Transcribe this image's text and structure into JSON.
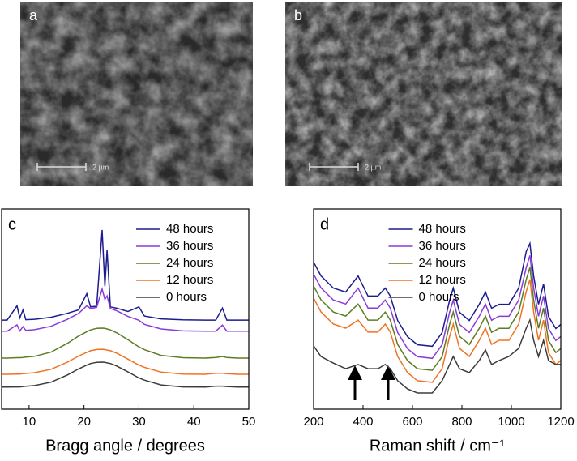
{
  "images": [
    {
      "label": "a",
      "scale_bar": "2 µm"
    },
    {
      "label": "b",
      "scale_bar": "2 µm"
    }
  ],
  "chart_data": [
    {
      "type": "line",
      "panel_label": "c",
      "x_label": "Bragg angle / degrees",
      "xlim": [
        5,
        50
      ],
      "xticks": [
        10,
        20,
        30,
        40,
        50
      ],
      "ylim": [
        0,
        100
      ],
      "legend": "upper right",
      "x": [
        5,
        6,
        7.8,
        8.3,
        8.9,
        9.4,
        11,
        14,
        17,
        19,
        20.5,
        21.2,
        22.3,
        23.3,
        23.8,
        24.2,
        24.8,
        26,
        28,
        30,
        31,
        34,
        38,
        42,
        44,
        45.2,
        46,
        48,
        50
      ],
      "series": [
        {
          "name": "48 hours",
          "color": "#1c1c8f",
          "values": [
            44.5,
            44.5,
            51.6,
            45.6,
            49.6,
            44.7,
            44.9,
            45.9,
            47.9,
            49.6,
            57.7,
            51.1,
            51.4,
            89.5,
            61.4,
            79.3,
            51.1,
            50.4,
            48.8,
            51.1,
            46.5,
            45.1,
            44.6,
            44.5,
            44.5,
            50.5,
            44.5,
            44.5,
            44.5
          ]
        },
        {
          "name": "36 hours",
          "color": "#8a3ad8",
          "values": [
            39,
            39,
            42.1,
            39.1,
            41.2,
            39.4,
            39.7,
            41.4,
            44.9,
            47.8,
            51.6,
            50.3,
            50.9,
            60,
            54.9,
            56.6,
            50.3,
            49.1,
            46.3,
            44.4,
            42.4,
            40.1,
            39.1,
            39,
            39,
            42,
            39,
            39,
            39
          ]
        },
        {
          "name": "24 hours",
          "color": "#5d7d22",
          "values": [
            25.5,
            25.5,
            25.7,
            25.7,
            25.8,
            26,
            26.4,
            28.5,
            32.9,
            36.5,
            38.7,
            39.6,
            40.4,
            40.5,
            40.4,
            40.1,
            39.6,
            38.1,
            34.7,
            31.1,
            29.7,
            26.9,
            25.7,
            25.5,
            25.8,
            26.3,
            25.8,
            25.5,
            25.5
          ]
        },
        {
          "name": "12 hours",
          "color": "#f07325",
          "values": [
            17.4,
            17.4,
            17.5,
            17.5,
            17.7,
            17.8,
            18.2,
            19.9,
            23.5,
            26.5,
            28.4,
            29.2,
            29.8,
            29.9,
            29.8,
            29.5,
            29.2,
            27.9,
            25,
            22,
            20.9,
            18.5,
            17.5,
            17.4,
            17.9,
            17.9,
            17.7,
            17.4,
            17.4
          ]
        },
        {
          "name": "0 hours",
          "color": "#3c3c3c",
          "values": [
            11,
            11,
            11.1,
            11.1,
            11.3,
            11.4,
            11.8,
            13.5,
            17.1,
            20.1,
            22,
            22.8,
            23.4,
            23.5,
            23.4,
            23.1,
            22.8,
            21.5,
            18.6,
            15.6,
            14.5,
            12.1,
            11.1,
            11,
            11.5,
            11.5,
            11.3,
            11,
            11
          ]
        }
      ]
    },
    {
      "type": "line",
      "panel_label": "d",
      "x_label": "Raman shift / cm⁻¹",
      "xlim": [
        200,
        1200
      ],
      "xticks": [
        200,
        400,
        600,
        800,
        1000,
        1200
      ],
      "ylim": [
        0,
        100
      ],
      "legend": "upper center",
      "x": [
        200,
        230,
        280,
        330,
        380,
        420,
        460,
        490,
        510,
        540,
        580,
        620,
        680,
        720,
        750,
        765,
        790,
        830,
        870,
        895,
        920,
        950,
        990,
        1030,
        1060,
        1075,
        1090,
        1110,
        1130,
        1150,
        1180,
        1200
      ],
      "series": [
        {
          "name": "48 hours",
          "color": "#1c1c8f",
          "values": [
            73.5,
            66.6,
            60.5,
            58.5,
            66.5,
            56.5,
            56.5,
            60.5,
            56.5,
            44.3,
            36.2,
            32.2,
            31.4,
            38.2,
            54.4,
            60.5,
            48.4,
            44.3,
            52.4,
            58.5,
            50.4,
            52.4,
            52.4,
            60.5,
            78.7,
            82.8,
            66.6,
            52.4,
            62.5,
            46.3,
            40.3,
            42.3
          ]
        },
        {
          "name": "36 hours",
          "color": "#8a3ad8",
          "values": [
            67.5,
            60.6,
            54.5,
            52.5,
            60.5,
            50.5,
            50.5,
            54.5,
            50.5,
            38.3,
            30.2,
            26.2,
            25.4,
            32.2,
            48.4,
            54.5,
            42.4,
            38.3,
            46.4,
            52.5,
            44.4,
            46.4,
            46.4,
            54.5,
            70.7,
            76.8,
            60.6,
            46.4,
            56.5,
            40.3,
            34.3,
            36.3
          ]
        },
        {
          "name": "24 hours",
          "color": "#5d7d22",
          "values": [
            61.5,
            54.6,
            48.5,
            46.5,
            52.5,
            44.5,
            44.5,
            48.5,
            44.5,
            32.3,
            24.2,
            20.2,
            19.4,
            26.2,
            42.4,
            48.5,
            36.4,
            32.3,
            40.4,
            46.5,
            38.4,
            40.4,
            40.4,
            48.5,
            64.7,
            70.8,
            54.6,
            40.4,
            50.5,
            34.3,
            28.3,
            30.3
          ]
        },
        {
          "name": "12 hours",
          "color": "#f07325",
          "values": [
            55.5,
            48.6,
            42.5,
            40.5,
            44.5,
            38.5,
            38.5,
            42.5,
            38.5,
            26.3,
            18.2,
            14.2,
            13.4,
            20.2,
            36.4,
            42.5,
            30.4,
            26.3,
            34.4,
            40.5,
            32.4,
            34.4,
            34.4,
            42.5,
            58.7,
            64.8,
            48.6,
            34.4,
            44.5,
            28.3,
            22.3,
            24.3
          ]
        },
        {
          "name": "0 hours",
          "color": "#3c3c3c",
          "values": [
            31.6,
            26.3,
            23,
            20.2,
            22.3,
            20.2,
            20.2,
            22.3,
            20.2,
            14.2,
            10.1,
            8.1,
            8.1,
            14.2,
            22.3,
            26.3,
            20.2,
            18.2,
            24.3,
            29.6,
            22.3,
            24.3,
            26.3,
            30.4,
            40.5,
            44.5,
            34.4,
            26.3,
            34.4,
            24.3,
            22.3,
            22.3
          ]
        }
      ]
    }
  ]
}
